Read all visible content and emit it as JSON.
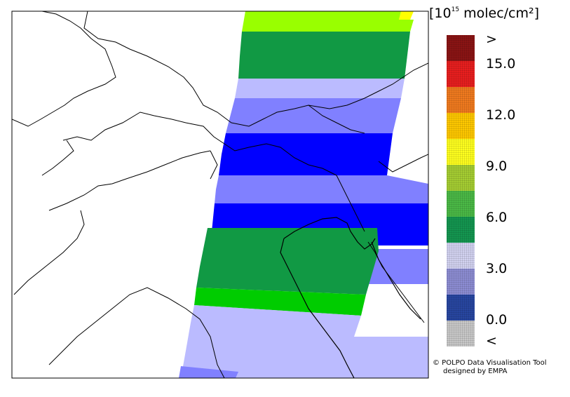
{
  "legend": {
    "unit_prefix": "[10",
    "unit_exp": "15",
    "unit_suffix": " molec/cm²]",
    "colors": [
      "#8a1414",
      "#e81e1e",
      "#f07a1e",
      "#ffc800",
      "#ffff1e",
      "#a5cd32",
      "#4bb946",
      "#149650",
      "#d2d2f0",
      "#8c8cd2",
      "#2846a0",
      "#c8c8c8"
    ],
    "labels": [
      ">",
      "15.0",
      "12.0",
      "9.0",
      "6.0",
      "3.0",
      "0.0",
      "<"
    ]
  },
  "credits": {
    "line1": "© POLPO Data Visualisation Tool",
    "line2": "designed by EMPA"
  },
  "bands": [
    {
      "color": "#ffff00"
    },
    {
      "color": "#99ff00"
    },
    {
      "color": "#119944"
    },
    {
      "color": "#bbbbff"
    },
    {
      "color": "#8080ff"
    },
    {
      "color": "#0000ff"
    },
    {
      "color": "#8080ff"
    },
    {
      "color": "#0000ff"
    },
    {
      "color": "#8080ff"
    },
    {
      "color": "#bbbbff"
    },
    {
      "color": "#119944"
    },
    {
      "color": "#00cc00"
    },
    {
      "color": "#bbbbff"
    },
    {
      "color": "#8080ff"
    }
  ]
}
